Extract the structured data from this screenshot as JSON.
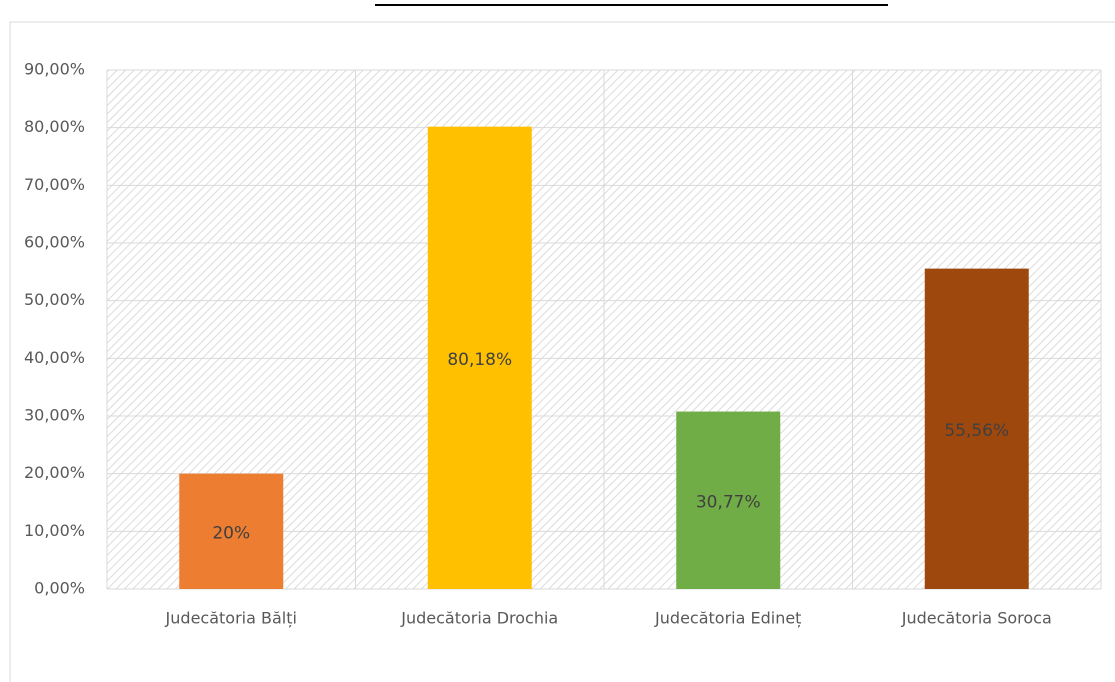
{
  "chart_data": {
    "type": "bar",
    "categories": [
      "Judecătoria Bălți",
      "Judecătoria Drochia",
      "Judecătoria Edineț",
      "Judecătoria Soroca"
    ],
    "values": [
      20,
      80.18,
      30.77,
      55.56
    ],
    "value_labels": [
      "20%",
      "80,18%",
      "30,77%",
      "55,56%"
    ],
    "colors": [
      "#ED7D31",
      "#FFC000",
      "#70AD47",
      "#9E480E"
    ],
    "ylim": [
      0,
      90
    ],
    "yticks": [
      {
        "value": 0,
        "label": "0,00%"
      },
      {
        "value": 10,
        "label": "10,00%"
      },
      {
        "value": 20,
        "label": "20,00%"
      },
      {
        "value": 30,
        "label": "30,00%"
      },
      {
        "value": 40,
        "label": "40,00%"
      },
      {
        "value": 50,
        "label": "50,00%"
      },
      {
        "value": 60,
        "label": "60,00%"
      },
      {
        "value": 70,
        "label": "70,00%"
      },
      {
        "value": 80,
        "label": "80,00%"
      },
      {
        "value": 90,
        "label": "90,00%"
      }
    ],
    "grid": true
  }
}
